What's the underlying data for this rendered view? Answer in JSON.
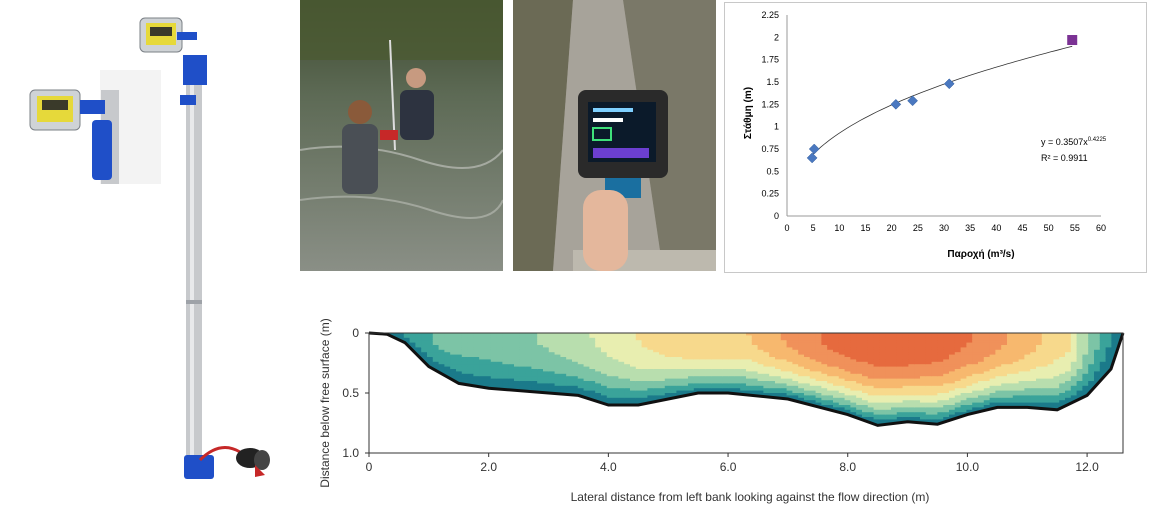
{
  "photos": {
    "meter_device": "current meter on telescopic rod with display unit",
    "field_measurement": "two people measuring discharge in a river",
    "handheld_display": "handheld display unit held over a channel"
  },
  "rating_curve": {
    "type": "scatter",
    "xlabel": "Παροχή (m³/s)",
    "ylabel": "Στάθμη (m)",
    "xlim": [
      0,
      60
    ],
    "ylim": [
      0,
      2.25
    ],
    "x_ticks": [
      "0",
      "5",
      "10",
      "15",
      "20",
      "25",
      "30",
      "35",
      "40",
      "45",
      "50",
      "55",
      "60"
    ],
    "y_ticks": [
      "0",
      "0.25",
      "0.5",
      "0.75",
      "1",
      "1.25",
      "1.5",
      "1.75",
      "2",
      "2.25"
    ],
    "points": [
      {
        "x": 4.8,
        "y": 0.65
      },
      {
        "x": 5.2,
        "y": 0.75
      },
      {
        "x": 20.8,
        "y": 1.25
      },
      {
        "x": 24.0,
        "y": 1.29
      },
      {
        "x": 31.0,
        "y": 1.48
      }
    ],
    "highlight_point": {
      "x": 54.5,
      "y": 1.97
    },
    "fit": {
      "a": 0.3507,
      "b": 0.4225
    },
    "equation_base": "y = 0.3507x",
    "equation_exp": "0.4225",
    "r2": "R² = 0.9911",
    "colors": {
      "points": "#4a78c0",
      "highlight": "#7b3294",
      "fit": "#333333"
    }
  },
  "chart_data": {
    "type": "heatmap",
    "title": "",
    "xlabel": "Lateral distance from left bank looking against the flow direction  (m)",
    "ylabel": "Distance below free surface (m)",
    "xlim": [
      0,
      12.6
    ],
    "ylim": [
      1.0,
      0
    ],
    "x_ticks": [
      "0",
      "2.0",
      "4.0",
      "6.0",
      "8.0",
      "10.0",
      "12.0"
    ],
    "y_ticks": [
      "0",
      "0.5",
      "1.0"
    ],
    "bed_profile": {
      "x": [
        0,
        0.3,
        0.6,
        1.0,
        1.5,
        2.0,
        3.0,
        3.5,
        4.0,
        4.5,
        5.0,
        5.5,
        6.0,
        7.0,
        8.0,
        8.5,
        9.0,
        9.5,
        10.0,
        10.5,
        11.0,
        11.5,
        12.0,
        12.4,
        12.6
      ],
      "depth": [
        0,
        0.01,
        0.08,
        0.28,
        0.42,
        0.46,
        0.5,
        0.52,
        0.6,
        0.6,
        0.55,
        0.5,
        0.5,
        0.55,
        0.68,
        0.77,
        0.74,
        0.76,
        0.68,
        0.62,
        0.62,
        0.64,
        0.52,
        0.3,
        0.0
      ]
    },
    "palette": [
      "#1b7a8a",
      "#3aa39a",
      "#7cc4a6",
      "#b8deae",
      "#e8eeb0",
      "#f7d98c",
      "#f7b86e",
      "#f0915a",
      "#e66a3e"
    ]
  }
}
